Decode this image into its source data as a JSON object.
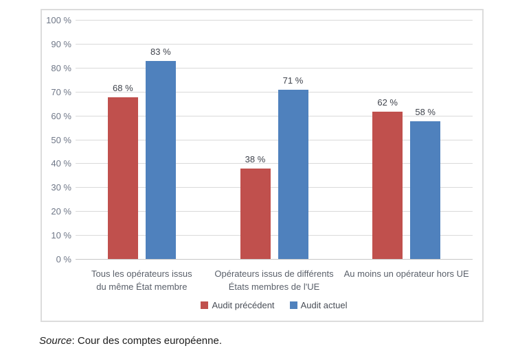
{
  "chart_data": {
    "type": "bar",
    "title": "",
    "categories": [
      "Tous les opérateurs issus\ndu même État membre",
      "Opérateurs issus de différents\nÉtats membres de l'UE",
      "Au moins un opérateur hors UE"
    ],
    "series": [
      {
        "name": "Audit précédent",
        "color": "#C0504D",
        "values": [
          68,
          38,
          62
        ]
      },
      {
        "name": "Audit actuel",
        "color": "#4F81BD",
        "values": [
          83,
          71,
          58
        ]
      }
    ],
    "value_suffix": " %",
    "y_ticks": [
      0,
      10,
      20,
      30,
      40,
      50,
      60,
      70,
      80,
      90,
      100
    ],
    "ylim": [
      0,
      100
    ],
    "grid": true,
    "legend_position": "bottom"
  },
  "source": {
    "label": "Source",
    "text": ": Cour des comptes européenne."
  }
}
